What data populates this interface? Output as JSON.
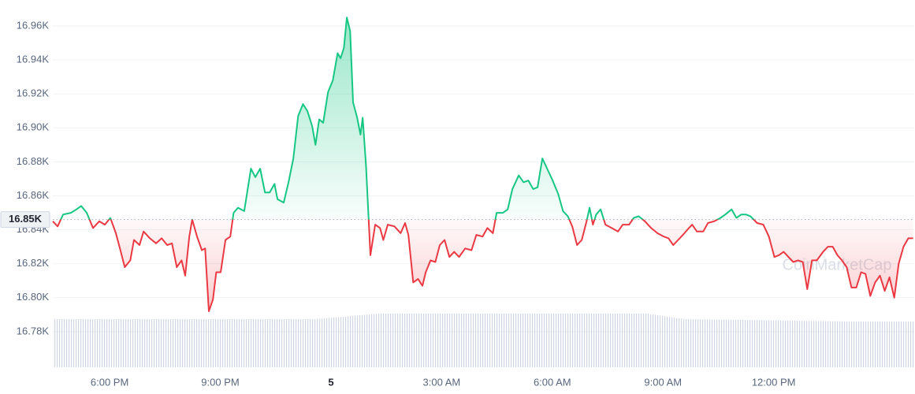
{
  "chart_data": {
    "type": "line",
    "x": [
      16.46,
      16.59,
      16.74,
      16.95,
      17.1,
      17.23,
      17.38,
      17.55,
      17.72,
      17.87,
      18.02,
      18.17,
      18.28,
      18.41,
      18.56,
      18.66,
      18.81,
      18.92,
      19.09,
      19.26,
      19.41,
      19.56,
      19.69,
      19.82,
      19.95,
      20.05,
      20.16,
      20.24,
      20.37,
      20.5,
      20.59,
      20.69,
      20.8,
      20.89,
      21.01,
      21.14,
      21.27,
      21.36,
      21.48,
      21.65,
      21.83,
      21.95,
      22.08,
      22.21,
      22.34,
      22.47,
      22.55,
      22.72,
      22.85,
      22.98,
      23.11,
      23.24,
      23.36,
      23.49,
      23.58,
      23.68,
      23.79,
      23.92,
      24.05,
      24.18,
      24.26,
      24.35,
      24.43,
      24.52,
      24.6,
      24.71,
      24.8,
      24.86,
      24.95,
      25.07,
      25.2,
      25.33,
      25.42,
      25.54,
      25.72,
      25.89,
      26.01,
      26.1,
      26.23,
      26.36,
      26.48,
      26.57,
      26.7,
      26.83,
      26.95,
      27.08,
      27.21,
      27.34,
      27.47,
      27.64,
      27.81,
      27.94,
      28.11,
      28.24,
      28.39,
      28.49,
      28.66,
      28.79,
      28.92,
      29.09,
      29.22,
      29.35,
      29.48,
      29.6,
      29.73,
      29.86,
      29.99,
      30.16,
      30.29,
      30.42,
      30.54,
      30.67,
      30.8,
      30.93,
      31.01,
      31.1,
      31.19,
      31.31,
      31.44,
      31.61,
      31.78,
      31.91,
      32.08,
      32.21,
      32.34,
      32.51,
      32.68,
      32.85,
      33.02,
      33.15,
      33.28,
      33.41,
      33.54,
      33.66,
      33.79,
      33.92,
      34.09,
      34.22,
      34.39,
      34.56,
      34.69,
      34.86,
      34.99,
      35.12,
      35.25,
      35.37,
      35.55,
      35.72,
      35.87,
      36.02,
      36.14,
      36.27,
      36.4,
      36.53,
      36.66,
      36.79,
      36.91,
      37.04,
      37.17,
      37.34,
      37.47,
      37.6,
      37.73,
      37.85,
      37.98,
      38.11,
      38.24,
      38.37,
      38.49,
      38.62,
      38.75,
      38.88,
      39.01,
      39.14,
      39.27,
      39.39,
      39.52,
      39.65,
      39.78
    ],
    "values": [
      16845,
      16842,
      16849,
      16850,
      16852,
      16854,
      16850,
      16841,
      16845,
      16843,
      16847,
      16838,
      16829,
      16818,
      16822,
      16834,
      16831,
      16839,
      16835,
      16832,
      16835,
      16831,
      16832,
      16818,
      16822,
      16813,
      16836,
      16846,
      16836,
      16828,
      16829,
      16792,
      16799,
      16815,
      16815,
      16834,
      16836,
      16850,
      16853,
      16851,
      16876,
      16871,
      16876,
      16862,
      16862,
      16867,
      16858,
      16856,
      16868,
      16882,
      16907,
      16914,
      16910,
      16901,
      16890,
      16905,
      16903,
      16921,
      16928,
      16944,
      16941,
      16947,
      16965,
      16957,
      16915,
      16906,
      16896,
      16906,
      16878,
      16825,
      16843,
      16841,
      16834,
      16843,
      16842,
      16838,
      16844,
      16837,
      16809,
      16811,
      16807,
      16815,
      16822,
      16821,
      16831,
      16834,
      16824,
      16827,
      16824,
      16829,
      16828,
      16837,
      16836,
      16841,
      16838,
      16850,
      16850,
      16852,
      16864,
      16872,
      16868,
      16869,
      16864,
      16865,
      16882,
      16876,
      16870,
      16861,
      16851,
      16848,
      16842,
      16831,
      16834,
      16845,
      16853,
      16843,
      16849,
      16852,
      16843,
      16841,
      16839,
      16843,
      16843,
      16847,
      16848,
      16845,
      16841,
      16838,
      16836,
      16835,
      16831,
      16834,
      16837,
      16840,
      16843,
      16839,
      16839,
      16844,
      16845,
      16847,
      16849,
      16852,
      16847,
      16849,
      16849,
      16848,
      16844,
      16843,
      16836,
      16824,
      16825,
      16827,
      16824,
      16821,
      16822,
      16821,
      16805,
      16822,
      16822,
      16827,
      16830,
      16830,
      16825,
      16822,
      16818,
      16806,
      16806,
      16815,
      16814,
      16801,
      16809,
      16813,
      16804,
      16812,
      16800,
      16820,
      16830,
      16835,
      16835
    ],
    "colors": {
      "up": "#16c784",
      "down": "#ea3943"
    },
    "baseline": {
      "value": 16846,
      "label": "16.85K"
    },
    "xlim": [
      16.46,
      39.81
    ],
    "xticks": [
      {
        "value": 18,
        "label": "6:00 PM"
      },
      {
        "value": 21,
        "label": "9:00 PM"
      },
      {
        "value": 24,
        "label": "5"
      },
      {
        "value": 27,
        "label": "3:00 AM"
      },
      {
        "value": 30,
        "label": "6:00 AM"
      },
      {
        "value": 33,
        "label": "9:00 AM"
      },
      {
        "value": 36,
        "label": "12:00 PM"
      }
    ],
    "ylim": [
      16760,
      16970
    ],
    "yticks": [
      {
        "value": 16780,
        "label": "16.78K"
      },
      {
        "value": 16800,
        "label": "16.80K"
      },
      {
        "value": 16820,
        "label": "16.82K"
      },
      {
        "value": 16840,
        "label": "16.84K"
      },
      {
        "value": 16860,
        "label": "16.86K"
      },
      {
        "value": 16880,
        "label": "16.88K"
      },
      {
        "value": 16900,
        "label": "16.90K"
      },
      {
        "value": 16920,
        "label": "16.92K"
      },
      {
        "value": 16940,
        "label": "16.94K"
      },
      {
        "value": 16960,
        "label": "16.96K"
      }
    ],
    "grid": true,
    "watermark": "CoinMarketCap"
  }
}
